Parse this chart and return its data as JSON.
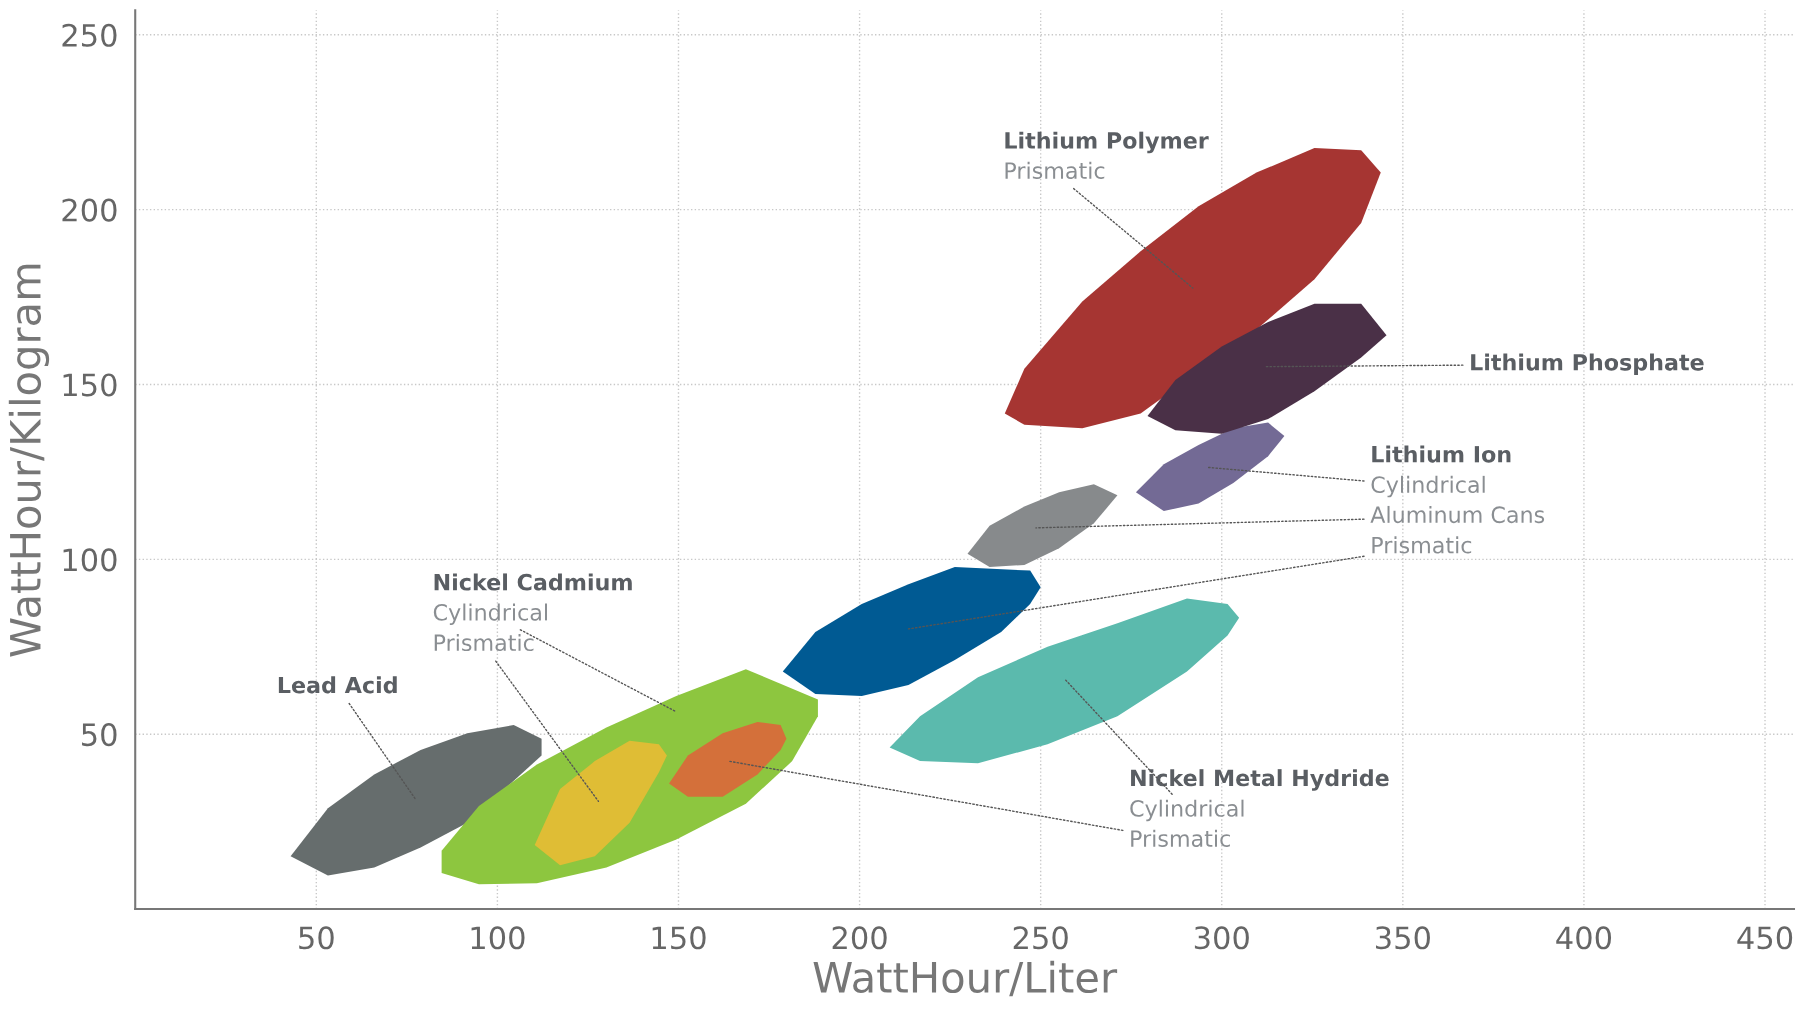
{
  "chart_data": {
    "type": "area",
    "xlabel": "WattHour/Liter",
    "ylabel": "WattHour/Kilogram",
    "xlim": [
      0,
      458
    ],
    "ylim": [
      0,
      257
    ],
    "xticks": [
      50,
      100,
      150,
      200,
      250,
      300,
      350,
      400,
      450
    ],
    "yticks": [
      50,
      100,
      150,
      200,
      250
    ],
    "grid": true,
    "series": [
      {
        "color": "#666d6d",
        "x": [
          42.9,
          53.2,
          66.0,
          78.8,
          91.7,
          104.5,
          112.2,
          112.2,
          104.5,
          91.7,
          78.8,
          66.0,
          53.2
        ],
        "values": [
          15.1,
          28.8,
          38.5,
          45.5,
          50.3,
          52.6,
          48.7,
          43.9,
          null,
          24.7,
          17.6,
          11.9,
          9.6
        ]
      },
      {
        "color": "#8dc63f",
        "x": [
          84.6,
          94.9,
          110.9,
          130.1,
          149.4,
          168.6,
          181.4,
          188.5,
          188.5,
          181.4,
          168.6,
          149.4,
          130.1,
          110.9,
          94.9,
          84.6
        ],
        "values": [
          16.7,
          29.5,
          41.3,
          51.9,
          60.9,
          68.6,
          null,
          59.9,
          55.1,
          42.3,
          30.1,
          19.9,
          11.9,
          7.4,
          7.1,
          10.3
        ]
      },
      {
        "color": "#dfbd35",
        "x": [
          110.3,
          117.3,
          126.9,
          136.5,
          144.6,
          146.8,
          144.6,
          136.5,
          126.9,
          117.3
        ],
        "values": [
          18.3,
          34.3,
          42.3,
          48.1,
          47.1,
          43.9,
          39.1,
          24.7,
          15.1,
          12.5
        ]
      },
      {
        "color": "#d4703a",
        "x": [
          147.4,
          152.6,
          162.2,
          171.8,
          178.2,
          179.8,
          178.2,
          171.8,
          162.2,
          152.6
        ],
        "values": [
          35.9,
          43.9,
          50.3,
          53.5,
          52.6,
          48.7,
          45.5,
          38.5,
          32.1,
          32.1
        ]
      },
      {
        "color": "#005a93",
        "x": [
          178.8,
          187.8,
          200.6,
          213.5,
          226.3,
          239.1,
          247.1,
          250.0,
          247.1,
          239.1,
          226.3,
          213.5,
          200.6,
          187.8
        ],
        "values": [
          67.9,
          79.2,
          87.2,
          92.9,
          97.8,
          null,
          96.8,
          92.0,
          87.2,
          79.2,
          71.2,
          64.1,
          60.9,
          61.5
        ]
      },
      {
        "color": "#5bbaad",
        "x": [
          208.3,
          216.7,
          232.7,
          251.9,
          271.2,
          290.4,
          301.6,
          304.8,
          301.6,
          290.4,
          271.2,
          251.9,
          232.7,
          216.7
        ],
        "values": [
          46.2,
          55.1,
          66.3,
          75.0,
          81.7,
          88.8,
          87.2,
          83.3,
          78.2,
          67.9,
          55.1,
          47.1,
          41.7,
          42.3
        ]
      },
      {
        "color": "#878a8c",
        "x": [
          229.8,
          235.9,
          245.5,
          255.1,
          264.7,
          271.2,
          264.7,
          255.1,
          245.5,
          235.9
        ],
        "values": [
          101.6,
          109.6,
          115.1,
          119.2,
          121.5,
          118.3,
          110.3,
          103.2,
          98.4,
          97.8
        ]
      },
      {
        "color": "#736a95",
        "x": [
          276.3,
          284.0,
          293.6,
          303.2,
          312.8,
          317.3,
          312.8,
          303.2,
          293.6,
          284.0
        ],
        "values": [
          119.2,
          127.2,
          132.7,
          137.5,
          139.1,
          135.3,
          129.5,
          121.8,
          116.0,
          113.8
        ]
      },
      {
        "color": "#a63532",
        "x": [
          240.1,
          245.5,
          261.5,
          277.6,
          293.6,
          309.6,
          325.6,
          338.5,
          343.9,
          338.5,
          325.6,
          309.6,
          293.6,
          277.6,
          261.5,
          245.5
        ],
        "values": [
          141.7,
          154.5,
          173.7,
          188.1,
          201.0,
          210.6,
          217.6,
          217.0,
          210.6,
          196.2,
          180.1,
          165.7,
          null,
          141.7,
          137.5,
          138.5
        ]
      },
      {
        "color": "#4a3047",
        "x": [
          279.5,
          287.2,
          300.0,
          312.8,
          325.6,
          338.5,
          345.5,
          338.5,
          325.6,
          312.8,
          300.0,
          287.2
        ],
        "values": [
          141.0,
          151.3,
          160.9,
          167.9,
          173.1,
          173.1,
          164.1,
          157.7,
          148.1,
          140.1,
          135.9,
          136.9
        ]
      }
    ],
    "annotations": [
      "Lithium Polymer",
      "Prismatic",
      "Lithium Phosphate",
      "Lithium Ion",
      "Cylindrical",
      "Aluminum Cans",
      "Prismatic",
      "Nickel Cadmium",
      "Cylindrical",
      "Prismatic",
      "Lead Acid",
      "Nickel Metal Hydride",
      "Cylindrical",
      "Prismatic"
    ]
  }
}
